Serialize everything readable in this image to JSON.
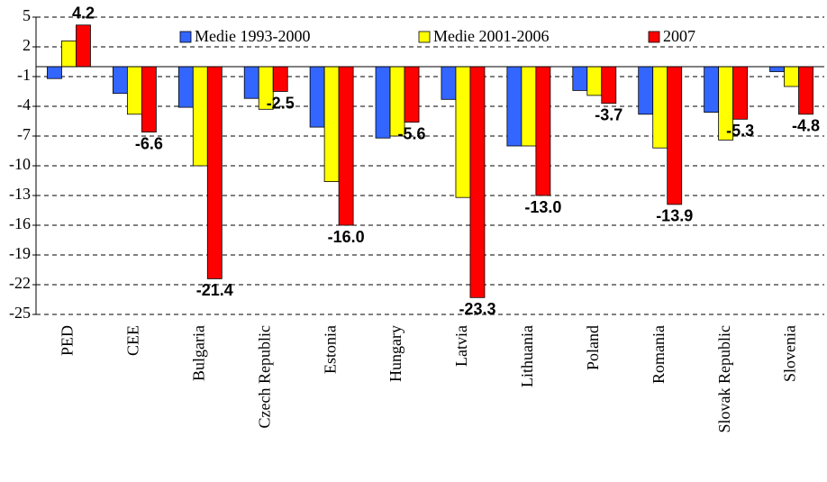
{
  "chart_data": {
    "type": "bar",
    "categories": [
      "PED",
      "CEE",
      "Bulgaria",
      "Czech Republic",
      "Estonia",
      "Hungary",
      "Latvia",
      "Lithuania",
      "Poland",
      "Romania",
      "Slovak Republic",
      "Slovenia"
    ],
    "series": [
      {
        "name": "Medie 1993-2000",
        "color": "#3366ff",
        "values": [
          -1.2,
          -2.7,
          -4.1,
          -3.2,
          -6.1,
          -7.2,
          -3.3,
          -8.0,
          -2.4,
          -4.8,
          -4.6,
          -0.5
        ]
      },
      {
        "name": "Medie 2001-2006",
        "color": "#ffff00",
        "values": [
          2.6,
          -4.8,
          -10.0,
          -4.3,
          -11.6,
          -7.0,
          -13.2,
          -8.0,
          -2.9,
          -8.2,
          -7.4,
          -2.0
        ]
      },
      {
        "name": "2007",
        "color": "#ff0000",
        "values": [
          4.2,
          -6.6,
          -21.4,
          -2.5,
          -16.0,
          -5.6,
          -23.3,
          -13.0,
          -3.7,
          -13.9,
          -5.3,
          -4.8
        ],
        "value_labels": [
          "4.2",
          "-6.6",
          "-21.4",
          "-2.5",
          "-16.0",
          "-5.6",
          "-23.3",
          "-13.0",
          "-3.7",
          "-13.9",
          "-5.3",
          "-4.8"
        ]
      }
    ],
    "ylim": [
      -25,
      5
    ],
    "yticks": [
      5,
      2,
      -1,
      -4,
      -7,
      -10,
      -13,
      -16,
      -19,
      -22,
      -25
    ],
    "grid": true
  }
}
